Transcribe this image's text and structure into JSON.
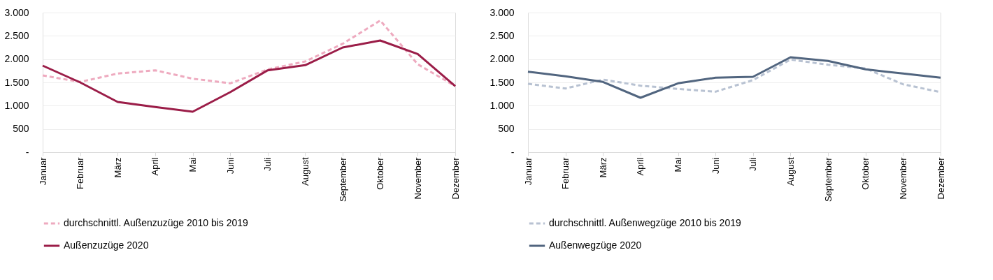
{
  "chart_data": [
    {
      "type": "line",
      "categories": [
        "Januar",
        "Februar",
        "März",
        "April",
        "Mai",
        "Juni",
        "Juli",
        "August",
        "September",
        "Oktober",
        "November",
        "Dezember"
      ],
      "series": [
        {
          "name": "durchschnittl. Außenzuzüge 2010 bis 2019",
          "color": "#eeaabf",
          "line_style": "dashed",
          "values": [
            1650,
            1510,
            1690,
            1760,
            1580,
            1480,
            1780,
            1950,
            2330,
            2830,
            1890,
            1420
          ]
        },
        {
          "name": "Außenzuzüge 2020",
          "color": "#9b1d48",
          "line_style": "solid",
          "values": [
            1860,
            1500,
            1080,
            970,
            870,
            1290,
            1760,
            1870,
            2250,
            2400,
            2110,
            1420
          ]
        }
      ],
      "ylim": [
        0,
        3000
      ],
      "yticks": [
        {
          "value": 0,
          "label": "-"
        },
        500,
        {
          "value": 1000,
          "label": "1.000"
        },
        {
          "value": 1500,
          "label": "1.500"
        },
        {
          "value": 2000,
          "label": "2.000"
        },
        {
          "value": 2500,
          "label": "2.500"
        },
        {
          "value": 3000,
          "label": "3.000"
        }
      ],
      "grid": "y",
      "legend": "bottom",
      "marker": "none"
    },
    {
      "type": "line",
      "categories": [
        "Januar",
        "Februar",
        "März",
        "April",
        "Mai",
        "Juni",
        "Juli",
        "August",
        "September",
        "Oktober",
        "November",
        "Dezember"
      ],
      "series": [
        {
          "name": "durchschnittl. Außenwegzüge 2010 bis 2019",
          "color": "#b8c2d2",
          "line_style": "dashed",
          "values": [
            1470,
            1370,
            1560,
            1430,
            1360,
            1300,
            1550,
            1990,
            1880,
            1800,
            1460,
            1290
          ]
        },
        {
          "name": "Außenwegzüge 2020",
          "color": "#51657f",
          "line_style": "solid",
          "values": [
            1730,
            1630,
            1510,
            1170,
            1480,
            1600,
            1620,
            2040,
            1960,
            1780,
            1690,
            1600
          ]
        }
      ],
      "ylim": [
        0,
        3000
      ],
      "yticks": [
        {
          "value": 0,
          "label": "-"
        },
        500,
        {
          "value": 1000,
          "label": "1.000"
        },
        {
          "value": 1500,
          "label": "1.500"
        },
        {
          "value": 2000,
          "label": "2.000"
        },
        {
          "value": 2500,
          "label": "2.500"
        },
        {
          "value": 3000,
          "label": "3.000"
        }
      ],
      "grid": "y",
      "legend": "bottom",
      "marker": "none"
    }
  ]
}
